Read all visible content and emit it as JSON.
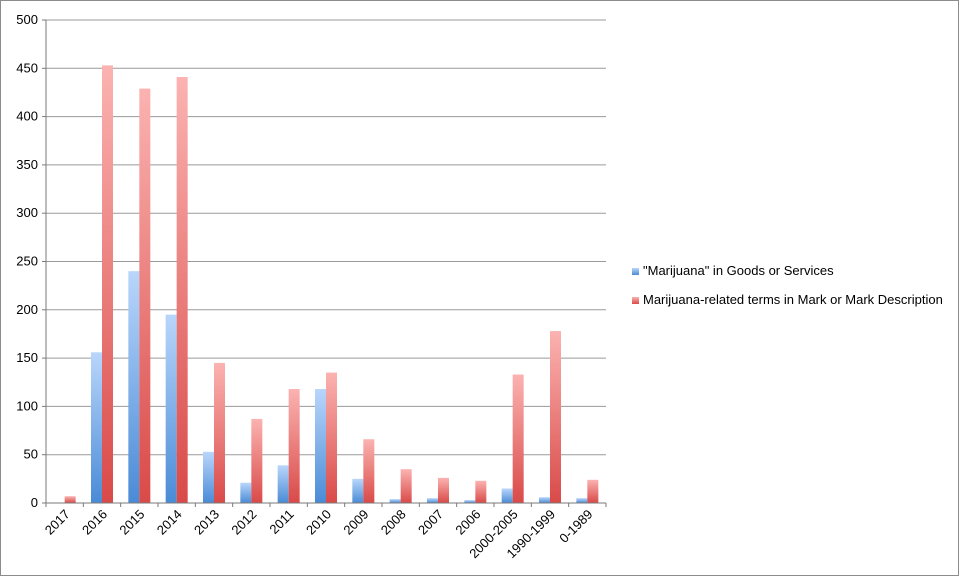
{
  "chart_data": {
    "type": "bar",
    "categories": [
      "2017",
      "2016",
      "2015",
      "2014",
      "2013",
      "2012",
      "2011",
      "2010",
      "2009",
      "2008",
      "2007",
      "2006",
      "2000-2005",
      "1990-1999",
      "0-1989"
    ],
    "series": [
      {
        "name": "\"Marijuana\" in Goods or Services",
        "color": "#5b9bd5",
        "values": [
          0,
          156,
          240,
          195,
          53,
          21,
          39,
          118,
          25,
          4,
          5,
          3,
          15,
          6,
          5
        ]
      },
      {
        "name": "Marijuana-related terms in Mark or Mark Description",
        "color": "#e05555",
        "values": [
          7,
          453,
          429,
          441,
          145,
          87,
          118,
          135,
          66,
          35,
          26,
          23,
          133,
          178,
          24
        ]
      }
    ],
    "yticks": [
      "0",
      "50",
      "100",
      "150",
      "200",
      "250",
      "300",
      "350",
      "400",
      "450",
      "500"
    ],
    "ylim": [
      0,
      500
    ],
    "grid": true,
    "legend_position": "right",
    "title": "",
    "xlabel": "",
    "ylabel": ""
  }
}
